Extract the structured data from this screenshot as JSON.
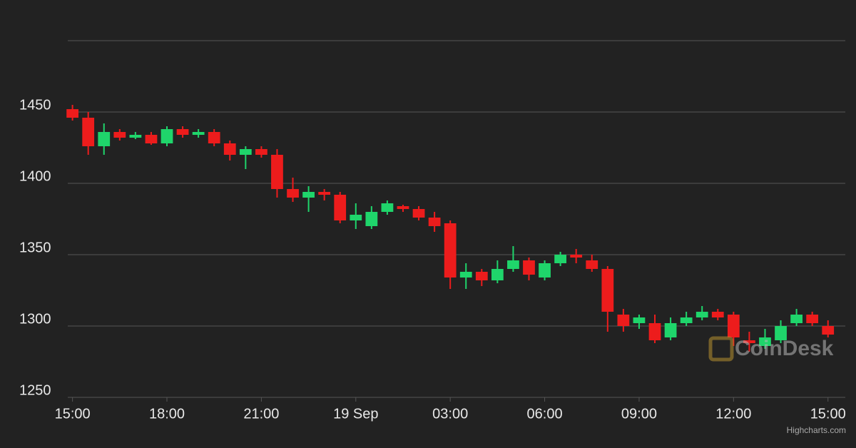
{
  "chart_data": {
    "type": "candlestick",
    "x": [
      0,
      0.5,
      1,
      1.5,
      2,
      2.5,
      3,
      3.5,
      4,
      4.5,
      5,
      5.5,
      6,
      6.5,
      7,
      7.5,
      8,
      8.5,
      9,
      9.5,
      10,
      10.5,
      11,
      11.5,
      12,
      12.5,
      13,
      13.5,
      14,
      14.5,
      15,
      15.5,
      16,
      16.5,
      17,
      17.5,
      18,
      18.5,
      19,
      19.5,
      20,
      20.5,
      21,
      21.5,
      22,
      22.5,
      23,
      23.5,
      24
    ],
    "open": [
      1452,
      1446,
      1426,
      1436,
      1432,
      1434,
      1428,
      1438,
      1434,
      1436,
      1428,
      1420,
      1424,
      1420,
      1396,
      1390,
      1394,
      1392,
      1374,
      1370,
      1380,
      1384,
      1382,
      1376,
      1372,
      1334,
      1338,
      1332,
      1340,
      1346,
      1334,
      1344,
      1350,
      1346,
      1340,
      1308,
      1302,
      1302,
      1292,
      1302,
      1306,
      1310,
      1308,
      1290,
      1286,
      1290,
      1302,
      1308,
      1300
    ],
    "high": [
      1455,
      1450,
      1442,
      1438,
      1436,
      1436,
      1440,
      1440,
      1438,
      1438,
      1430,
      1426,
      1426,
      1424,
      1404,
      1398,
      1396,
      1394,
      1386,
      1384,
      1388,
      1385,
      1384,
      1380,
      1374,
      1344,
      1340,
      1346,
      1356,
      1348,
      1346,
      1352,
      1354,
      1350,
      1342,
      1312,
      1308,
      1308,
      1306,
      1310,
      1314,
      1312,
      1310,
      1296,
      1298,
      1304,
      1312,
      1310,
      1304
    ],
    "low": [
      1444,
      1420,
      1420,
      1430,
      1431,
      1427,
      1426,
      1432,
      1432,
      1426,
      1416,
      1410,
      1418,
      1390,
      1387,
      1380,
      1388,
      1372,
      1368,
      1368,
      1378,
      1380,
      1374,
      1366,
      1326,
      1326,
      1328,
      1330,
      1338,
      1332,
      1332,
      1342,
      1344,
      1338,
      1296,
      1296,
      1298,
      1288,
      1290,
      1300,
      1304,
      1304,
      1286,
      1282,
      1284,
      1288,
      1300,
      1300,
      1292
    ],
    "close": [
      1446,
      1426,
      1436,
      1432,
      1434,
      1428,
      1438,
      1434,
      1436,
      1428,
      1420,
      1424,
      1420,
      1396,
      1390,
      1394,
      1392,
      1374,
      1378,
      1380,
      1386,
      1382,
      1376,
      1370,
      1334,
      1338,
      1332,
      1340,
      1346,
      1336,
      1344,
      1350,
      1348,
      1340,
      1310,
      1300,
      1306,
      1290,
      1302,
      1306,
      1310,
      1306,
      1292,
      1288,
      1292,
      1300,
      1308,
      1302,
      1294
    ],
    "up_color": "#1fd56b",
    "down_color": "#ed1c1c",
    "ylim": [
      1250,
      1500
    ],
    "yticks": [
      1250,
      1300,
      1350,
      1400,
      1450
    ],
    "xlim": [
      -0.15,
      24.55
    ],
    "xticks": [
      {
        "value": 0,
        "label": "15:00"
      },
      {
        "value": 3,
        "label": "18:00"
      },
      {
        "value": 6,
        "label": "21:00"
      },
      {
        "value": 9,
        "label": "19 Sep"
      },
      {
        "value": 12,
        "label": "03:00"
      },
      {
        "value": 15,
        "label": "06:00"
      },
      {
        "value": 18,
        "label": "09:00"
      },
      {
        "value": 21,
        "label": "12:00"
      },
      {
        "value": 24,
        "label": "15:00"
      }
    ],
    "grid": true,
    "watermark": "CoinDesk",
    "credit": "Highcharts.com"
  }
}
